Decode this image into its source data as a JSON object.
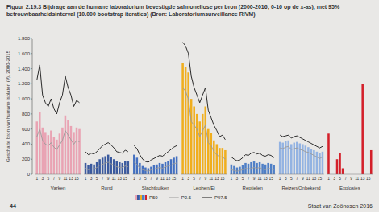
{
  "chart_data": {
    "type": "bar",
    "title": "Figuur 2.19.3 Bijdrage aan de humane laboratorium bevestigde salmonellose per bron (2000-2016; 0-16 op de x-as), met 95% betrouwbaarheidsinterval (10.000 bootstrap iteraties) (Bron: Laboratoriumsurveillance RIVM)",
    "y_label": "Geschatte bron van humane isolaten (#), 2000-2015",
    "categories": [
      "1",
      null,
      "3",
      null,
      "5",
      null,
      "7",
      null,
      "9",
      null,
      "11",
      null,
      "13",
      null,
      "15",
      null,
      "1",
      null,
      "3",
      null,
      "5",
      null,
      "7",
      null,
      "9",
      null,
      "11",
      null,
      "13",
      null,
      "15",
      null,
      "1",
      null,
      "3",
      null,
      "5",
      null,
      "7",
      null,
      "9",
      null,
      "11",
      null,
      "13",
      null,
      "15",
      null,
      "1",
      null,
      "3",
      null,
      "5",
      null,
      "7",
      null,
      "9",
      null,
      "11",
      null,
      "13",
      null,
      "15",
      null,
      "1",
      null,
      "3",
      null,
      "5",
      null,
      "7",
      null,
      "9",
      null,
      "11",
      null,
      "13",
      null,
      "15",
      null,
      "1",
      null,
      "3",
      null,
      "5",
      null,
      "7",
      null,
      "9",
      null,
      "11",
      null,
      "13",
      null,
      "15",
      null,
      "1",
      null,
      "3",
      null,
      "5",
      null,
      "7",
      null,
      "9",
      null,
      "11",
      null,
      "13",
      null,
      "15",
      null
    ],
    "groups": [
      {
        "name": "Varken",
        "color": "#e9a3b3"
      },
      {
        "name": "Rund",
        "color": "#3b5a9e"
      },
      {
        "name": "Slachtkuiken",
        "color": "#4470c0"
      },
      {
        "name": "Leghen/Ei",
        "color": "#f0ae1e"
      },
      {
        "name": "Reptielen",
        "color": "#4f7fc6"
      },
      {
        "name": "Reizen/Onbekend",
        "color": "#93b3e2"
      },
      {
        "name": "Explosies",
        "color": "#d4202a"
      }
    ],
    "series": [
      {
        "name": "P50",
        "type": "bar",
        "values": [
          700,
          820,
          620,
          560,
          520,
          580,
          500,
          460,
          540,
          620,
          780,
          720,
          640,
          560,
          620,
          600,
          150,
          120,
          140,
          130,
          160,
          200,
          220,
          240,
          260,
          230,
          200,
          170,
          160,
          150,
          180,
          170,
          260,
          220,
          150,
          110,
          90,
          80,
          100,
          120,
          130,
          150,
          140,
          160,
          180,
          200,
          220,
          240,
          1480,
          1420,
          1350,
          1000,
          900,
          800,
          700,
          800,
          900,
          600,
          550,
          450,
          400,
          350,
          350,
          320,
          130,
          110,
          90,
          100,
          120,
          150,
          140,
          160,
          170,
          150,
          160,
          140,
          130,
          150,
          140,
          120,
          430,
          420,
          440,
          450,
          400,
          420,
          430,
          410,
          400,
          380,
          360,
          340,
          320,
          300,
          280,
          300,
          540,
          0,
          0,
          200,
          280,
          80,
          0,
          0,
          0,
          0,
          0,
          0,
          1200,
          0,
          0,
          320
        ]
      },
      {
        "name": "P2.5",
        "type": "line",
        "color": "#9a9a9a",
        "line_style": "solid",
        "values": [
          500,
          600,
          450,
          400,
          380,
          420,
          360,
          330,
          390,
          450,
          580,
          520,
          460,
          400,
          450,
          430,
          80,
          60,
          70,
          70,
          90,
          120,
          130,
          150,
          160,
          140,
          120,
          100,
          90,
          90,
          110,
          100,
          160,
          130,
          80,
          60,
          50,
          40,
          60,
          70,
          80,
          90,
          80,
          100,
          110,
          120,
          140,
          150,
          1150,
          1100,
          1000,
          700,
          650,
          600,
          500,
          580,
          650,
          420,
          380,
          300,
          260,
          230,
          230,
          200,
          60,
          50,
          40,
          50,
          60,
          80,
          70,
          80,
          90,
          80,
          90,
          70,
          60,
          80,
          70,
          60,
          350,
          340,
          360,
          370,
          330,
          340,
          350,
          330,
          320,
          300,
          290,
          270,
          250,
          230,
          210,
          230,
          null,
          null,
          null,
          null,
          null,
          null,
          null,
          null,
          null,
          null,
          null,
          null,
          null,
          null,
          null,
          null
        ]
      },
      {
        "name": "P97.5",
        "type": "line",
        "color": "#141414",
        "line_style": "solid",
        "values": [
          1250,
          1450,
          1050,
          950,
          900,
          1000,
          870,
          800,
          950,
          1050,
          1300,
          1150,
          1050,
          900,
          980,
          950,
          300,
          260,
          280,
          270,
          300,
          340,
          380,
          400,
          420,
          390,
          350,
          300,
          290,
          280,
          320,
          300,
          380,
          340,
          260,
          200,
          170,
          160,
          190,
          210,
          230,
          250,
          240,
          270,
          300,
          330,
          360,
          380,
          1750,
          1700,
          1600,
          1300,
          1150,
          1050,
          950,
          1050,
          1150,
          850,
          750,
          650,
          580,
          500,
          520,
          460,
          230,
          200,
          180,
          190,
          220,
          260,
          250,
          280,
          290,
          270,
          280,
          250,
          240,
          260,
          250,
          220,
          520,
          500,
          510,
          520,
          480,
          500,
          510,
          490,
          470,
          450,
          430,
          410,
          390,
          370,
          350,
          370,
          null,
          null,
          null,
          null,
          null,
          null,
          null,
          null,
          null,
          null,
          null,
          null,
          null,
          null,
          null,
          null
        ]
      }
    ],
    "ylim": [
      0,
      1800
    ],
    "yticks": [
      0,
      200,
      400,
      600,
      800,
      {
        "value": 1000,
        "label": "1.000"
      },
      {
        "value": 1200,
        "label": "1.200"
      },
      {
        "value": 1400,
        "label": "1.400"
      },
      {
        "value": 1600,
        "label": "1.600"
      },
      {
        "value": 1800,
        "label": "1.800"
      }
    ],
    "grid": false,
    "legend": "bottom"
  },
  "page": {
    "number": "44",
    "footer": "Staat van Zoönosen 2016"
  }
}
